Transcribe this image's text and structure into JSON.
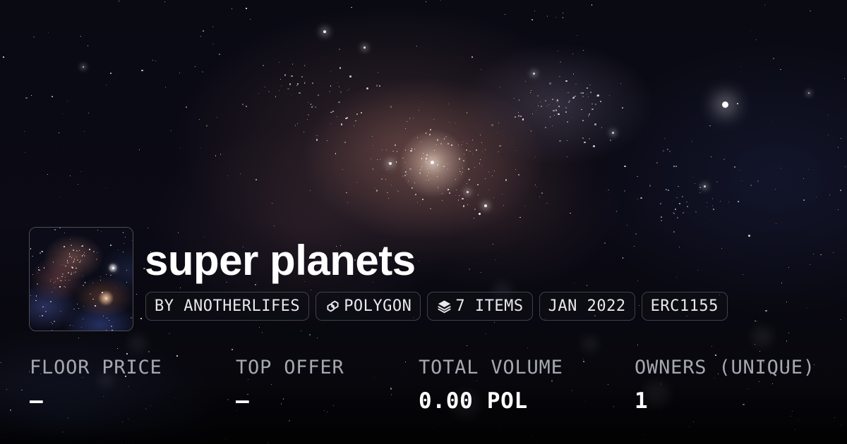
{
  "collection": {
    "title": "super planets",
    "badges": [
      {
        "label": "BY ANOTHERLIFES",
        "icon": null
      },
      {
        "label": "POLYGON",
        "icon": "polygon-icon"
      },
      {
        "label": "7 ITEMS",
        "icon": "layers-icon"
      },
      {
        "label": "JAN 2022",
        "icon": null
      },
      {
        "label": "ERC1155",
        "icon": null
      }
    ],
    "stats": [
      {
        "label": "FLOOR PRICE",
        "value": "—"
      },
      {
        "label": "TOP OFFER",
        "value": "—"
      },
      {
        "label": "TOTAL VOLUME",
        "value": "0.00 POL"
      },
      {
        "label": "OWNERS (UNIQUE)",
        "value": "1"
      }
    ]
  },
  "icons": {
    "polygon": "polygon-icon",
    "layers": "layers-icon"
  },
  "colors": {
    "background": "#08080f",
    "title": "#ffffff",
    "stat_label": "#a6a8af",
    "stat_value": "#ffffff",
    "badge_text": "#e9e9ec",
    "badge_border": "rgba(255,255,255,0.22)",
    "nebula_warm": "#9b695f",
    "nebula_blue": "#23305c"
  }
}
